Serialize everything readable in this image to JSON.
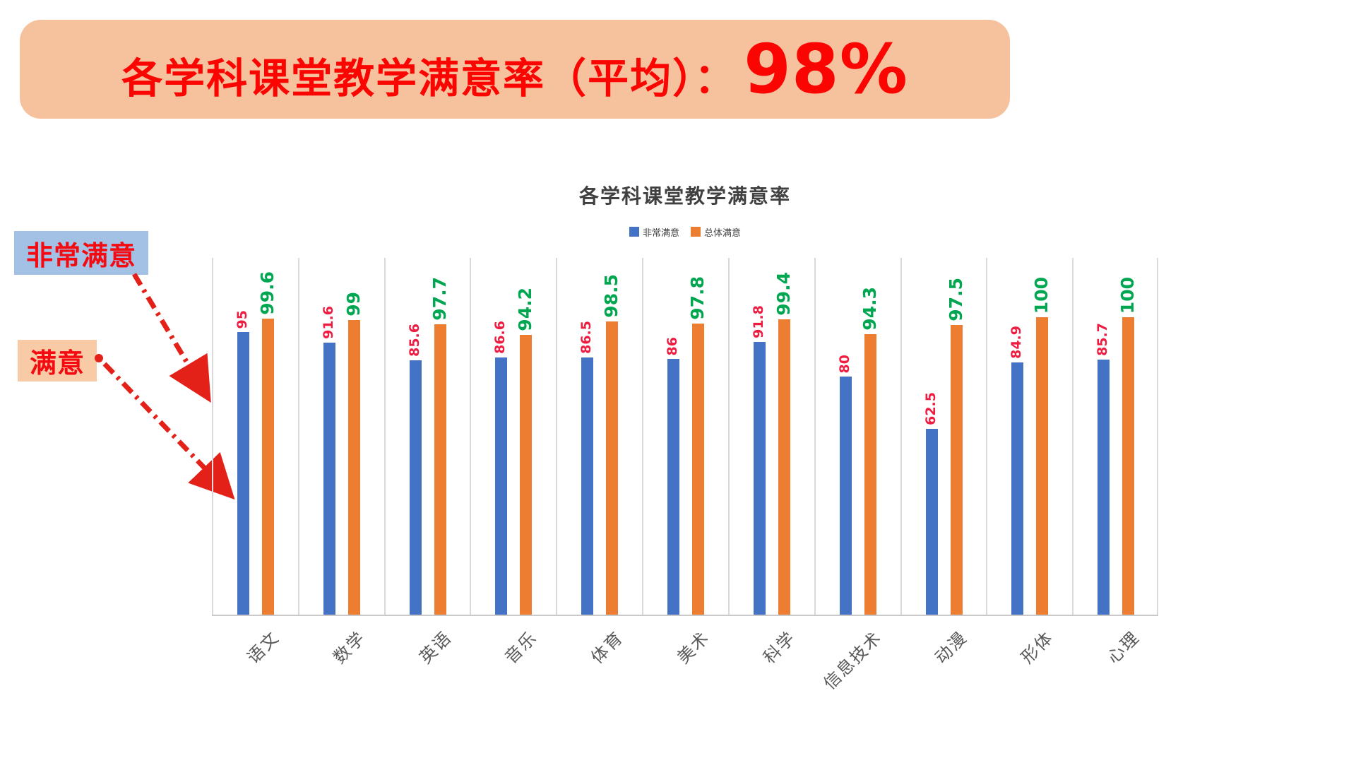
{
  "banner": {
    "title_prefix": "各学科课堂教学满意率（平均）：",
    "big_value": "98%",
    "bg_color": "#f6c19d",
    "text_color": "#fb0503"
  },
  "callouts": {
    "very_satisfied": {
      "label": "非常满意",
      "bg_color": "#a3c1e5",
      "text_color": "#f40b12"
    },
    "satisfied": {
      "label": "满意",
      "bg_color": "#f8cba6",
      "text_color": "#f40b12"
    },
    "arrow_color": "#e32119"
  },
  "chart_data": {
    "type": "bar",
    "title": "各学科课堂教学满意率",
    "categories": [
      "语文",
      "数学",
      "英语",
      "音乐",
      "体育",
      "美术",
      "科学",
      "信息技术",
      "动漫",
      "形体",
      "心理"
    ],
    "series": [
      {
        "name": "非常满意",
        "color": "#4472c4",
        "label_color": "#ed1c40",
        "values": [
          95,
          91.6,
          85.6,
          86.6,
          86.5,
          86,
          91.8,
          80,
          62.5,
          84.9,
          85.7
        ]
      },
      {
        "name": "总体满意",
        "color": "#ed7d31",
        "label_color": "#00a650",
        "values": [
          99.6,
          99,
          97.7,
          94.2,
          98.5,
          97.8,
          99.4,
          94.3,
          97.5,
          100,
          100
        ]
      }
    ],
    "ylabel": "",
    "xlabel": "",
    "ylim": [
      0,
      120
    ],
    "grid": "vertical-category-separators",
    "legend_position": "top-center",
    "value_labels": "rotated-90"
  }
}
